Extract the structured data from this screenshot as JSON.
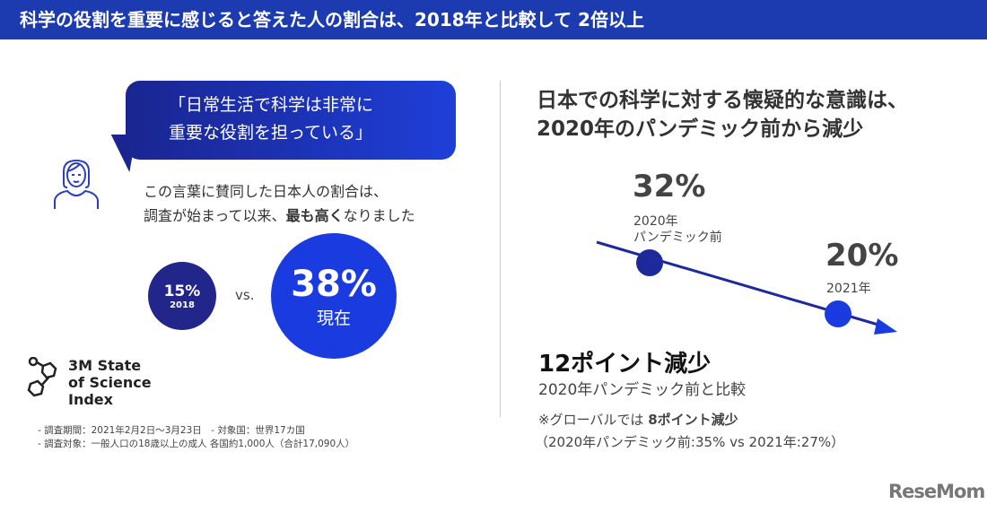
{
  "header": {
    "title": "科学の役割を重要に感じると答えた人の割合は、2018年と比較して 2倍以上"
  },
  "left": {
    "quote_line1": "「日常生活で科学は非常に",
    "quote_line2": "重要な役割を担っている」",
    "desc_line1": "この言葉に賛同した日本人の割合は、",
    "desc_line2_pre": "調査が始まって以来、",
    "desc_line2_bold": "最も高く",
    "desc_line2_post": "なりました",
    "old_value": "15%",
    "old_label": "2018",
    "vs": "vs.",
    "new_value": "38%",
    "new_label": "現在",
    "logo_line1": "3M State",
    "logo_line2": "of Science",
    "logo_line3": "Index",
    "note1": "- 調査期間：2021年2月2日～3月23日　- 対象国：世界17カ国",
    "note2": "- 調査対象：一般人口の18歳以上の成人 各国約1,000人（合計17,090人）"
  },
  "right": {
    "title_line1": "日本での科学に対する懐疑的な意識は、",
    "title_line2": "2020年のパンデミック前から減少",
    "point1": {
      "value": "32%",
      "label1": "2020年",
      "label2": "パンデミック前"
    },
    "point2": {
      "value": "20%",
      "label1": "2021年"
    },
    "headline": "12ポイント減少",
    "sub": "2020年パンデミック前と比較",
    "global_pre": "※グローバルでは ",
    "global_bold": "8ポイント減少",
    "global_detail": "（2020年パンデミック前:35% vs 2021年:27%）"
  },
  "brand": {
    "name": "ReseMom"
  },
  "colors": {
    "header": "#1d3bb0",
    "navy": "#22268a",
    "blue": "#1a3be0"
  }
}
